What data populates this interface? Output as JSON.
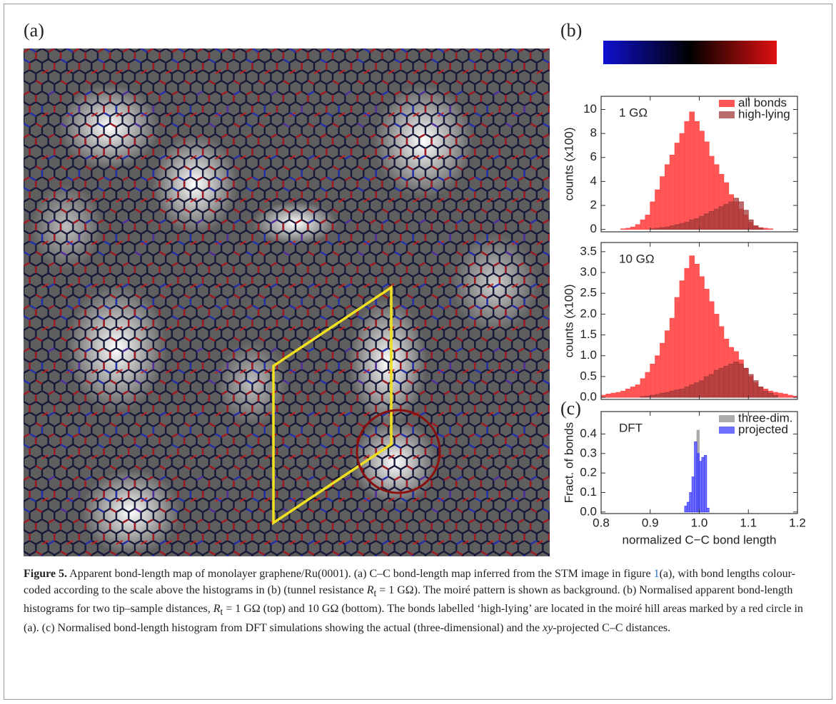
{
  "figure": {
    "panel_labels": [
      "(a)",
      "(b)",
      "(c)"
    ]
  },
  "chart_data": [
    {
      "type": "histogram",
      "annotation": "1 GΩ",
      "ylabel": "counts (x100)",
      "bins": [
        0.8,
        0.81,
        0.82,
        0.83,
        0.84,
        0.85,
        0.86,
        0.87,
        0.88,
        0.89,
        0.9,
        0.91,
        0.92,
        0.93,
        0.94,
        0.95,
        0.96,
        0.97,
        0.98,
        0.99,
        1.0,
        1.01,
        1.02,
        1.03,
        1.04,
        1.05,
        1.06,
        1.07,
        1.08,
        1.09,
        1.1,
        1.11,
        1.12,
        1.13,
        1.14,
        1.15,
        1.16,
        1.17,
        1.18,
        1.19,
        1.2
      ],
      "series": [
        {
          "name": "all bonds",
          "color": "#ff4d4d",
          "values": [
            0,
            0,
            0,
            0,
            0.05,
            0.1,
            0.2,
            0.4,
            0.8,
            1.2,
            2.3,
            3.3,
            4.4,
            5.4,
            6.2,
            7.2,
            8.0,
            9.0,
            9.8,
            9.0,
            8.2,
            7.3,
            6.1,
            5.4,
            4.6,
            3.9,
            2.9,
            2.3,
            1.7,
            1.2,
            0.6,
            0.3,
            0.15,
            0.1,
            0.05,
            0,
            0,
            0,
            0,
            0
          ]
        },
        {
          "name": "high-lying",
          "color": "#a33a3a",
          "values": [
            0,
            0,
            0,
            0,
            0,
            0,
            0,
            0,
            0,
            0,
            0.05,
            0.1,
            0.15,
            0.2,
            0.3,
            0.4,
            0.5,
            0.6,
            0.8,
            0.9,
            1.1,
            1.3,
            1.5,
            1.7,
            1.9,
            2.1,
            2.3,
            2.6,
            2.3,
            1.6,
            0.8,
            0.3,
            0.1,
            0,
            0,
            0,
            0,
            0,
            0,
            0
          ]
        }
      ],
      "xlim": [
        0.8,
        1.2
      ],
      "xticks": [
        0.8,
        0.9,
        1.0,
        1.1,
        1.2
      ],
      "xtick_labels": false,
      "ylim": [
        -0.2,
        11.1
      ],
      "yticks": [
        0,
        2,
        4,
        6,
        8,
        10
      ]
    },
    {
      "type": "histogram",
      "annotation": "10 GΩ",
      "ylabel": "counts (x100)",
      "bins": [
        0.8,
        0.81,
        0.82,
        0.83,
        0.84,
        0.85,
        0.86,
        0.87,
        0.88,
        0.89,
        0.9,
        0.91,
        0.92,
        0.93,
        0.94,
        0.95,
        0.96,
        0.97,
        0.98,
        0.99,
        1.0,
        1.01,
        1.02,
        1.03,
        1.04,
        1.05,
        1.06,
        1.07,
        1.08,
        1.09,
        1.1,
        1.11,
        1.12,
        1.13,
        1.14,
        1.15,
        1.16,
        1.17,
        1.18,
        1.19,
        1.2
      ],
      "series": [
        {
          "color": "#ff4d4d",
          "values": [
            0.05,
            0.08,
            0.1,
            0.12,
            0.15,
            0.2,
            0.25,
            0.3,
            0.45,
            0.6,
            0.8,
            1.0,
            1.3,
            1.6,
            1.9,
            2.4,
            2.8,
            3.1,
            3.4,
            3.2,
            2.9,
            2.6,
            2.3,
            2.0,
            1.7,
            1.4,
            1.2,
            1.1,
            0.9,
            0.7,
            0.5,
            0.35,
            0.25,
            0.2,
            0.15,
            0.12,
            0.1,
            0.08,
            0.05,
            0.03
          ]
        },
        {
          "color": "#a33a3a",
          "values": [
            0,
            0,
            0,
            0,
            0,
            0,
            0,
            0,
            0.02,
            0.03,
            0.05,
            0.07,
            0.1,
            0.12,
            0.15,
            0.18,
            0.2,
            0.25,
            0.3,
            0.35,
            0.4,
            0.5,
            0.55,
            0.65,
            0.7,
            0.75,
            0.8,
            0.85,
            0.8,
            0.7,
            0.55,
            0.4,
            0.25,
            0.15,
            0.1,
            0.05,
            0,
            0,
            0,
            0
          ]
        }
      ],
      "xlim": [
        0.8,
        1.2
      ],
      "xticks": [
        0.8,
        0.9,
        1.0,
        1.1,
        1.2
      ],
      "xtick_labels": false,
      "ylim": [
        -0.05,
        3.72
      ],
      "yticks": [
        {
          "value": 0,
          "label": "0.0"
        },
        0.5,
        {
          "value": 1,
          "label": "1.0"
        },
        1.5,
        {
          "value": 2,
          "label": "2.0"
        },
        2.5,
        {
          "value": 3,
          "label": "3.0"
        },
        3.5
      ]
    },
    {
      "type": "histogram",
      "annotation": "DFT",
      "ylabel": "Fract. of bonds",
      "xlabel": "normalized C−C bond length",
      "bins": [
        0.97,
        0.975,
        0.98,
        0.985,
        0.99,
        0.995,
        1.0,
        1.005,
        1.01,
        1.015,
        1.02
      ],
      "series": [
        {
          "name": "three-dim.",
          "color": "#a6a6a6",
          "values": [
            0,
            0,
            0,
            0,
            0,
            0.42,
            0,
            0,
            0,
            0
          ]
        },
        {
          "name": "projected",
          "color": "#3d3dff",
          "values": [
            0.03,
            0.05,
            0.1,
            0.18,
            0.36,
            0.3,
            0.26,
            0.28,
            0.29,
            0.02
          ]
        }
      ],
      "xlim": [
        0.8,
        1.2
      ],
      "xticks": [
        0.8,
        0.9,
        {
          "value": 1,
          "label": "1.0"
        },
        1.1,
        1.2
      ],
      "xtick_labels": true,
      "ylim": [
        -0.008,
        0.515
      ],
      "yticks": [
        {
          "value": 0,
          "label": "0.0"
        },
        0.1,
        0.2,
        0.3,
        0.4
      ]
    }
  ],
  "caption": {
    "label": "Figure 5.",
    "runs": [
      " Apparent bond-length map of monolayer graphene/Ru(0001). (a) C–C bond-length map inferred from the STM image in figure ",
      "1",
      "(a), with bond lengths colour-coded according to the scale above the histograms in (b) (tunnel resistance ",
      "R",
      "t",
      " = 1 GΩ). The moiré pattern is shown as background. (b) Normalised apparent bond-length histograms for two tip–sample distances, ",
      "R",
      "t",
      " = 1 GΩ (top) and 10  GΩ (bottom). The bonds labelled ‘high-lying’ are located in the moiré hill areas marked by a red circle in (a). (c) Normalised bond-length histogram from DFT simulations showing the actual (three-dimensional) and the ",
      "xy",
      "-projected C–C distances."
    ]
  }
}
